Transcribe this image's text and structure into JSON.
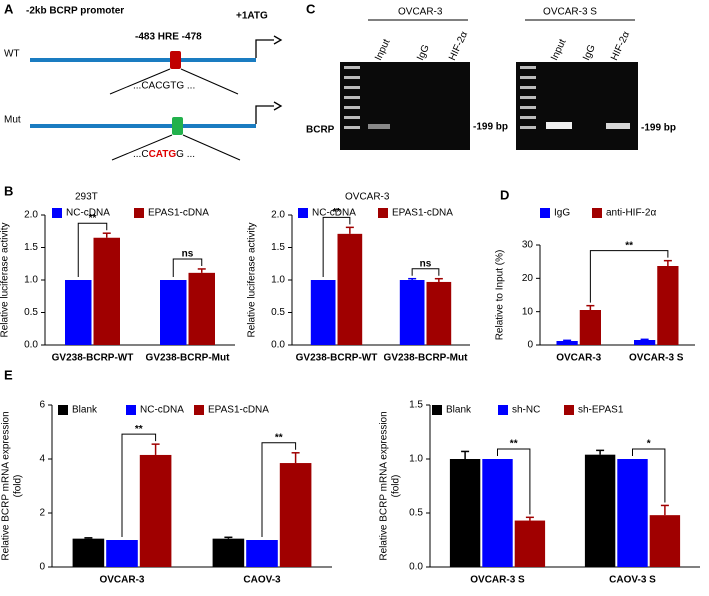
{
  "panel_labels": [
    "A",
    "B",
    "C",
    "D",
    "E"
  ],
  "panel_a": {
    "title": "-2kb BCRP promoter",
    "start": "+1ATG",
    "hre": "-483 HRE -478",
    "wt": "WT",
    "wt_seq": "...CACGTG ...",
    "mut": "Mut",
    "mut_seq": [
      "...C",
      "CATG",
      "G ..."
    ]
  },
  "panel_c": {
    "gels": [
      {
        "title": "OVCAR-3",
        "lanes": [
          "Input",
          "IgG",
          "HIF-2α"
        ],
        "size": "-199 bp"
      },
      {
        "title": "OVCAR-3 S",
        "lanes": [
          "Input",
          "IgG",
          "HIF-2α"
        ],
        "size": "-199 bp"
      }
    ],
    "row_label": "BCRP"
  },
  "chart_data": [
    {
      "type": "bar",
      "title": "293T",
      "categories": [
        "GV238-BCRP-WT",
        "GV238-BCRP-Mut"
      ],
      "ylabel": "Relative luciferase activity",
      "ylim": [
        0,
        2
      ],
      "yticks": [
        {
          "value": 0,
          "label": "0.0"
        },
        {
          "value": 0.5,
          "label": "0.5"
        },
        {
          "value": 1,
          "label": "1.0"
        },
        {
          "value": 1.5,
          "label": "1.5"
        },
        {
          "value": 2,
          "label": "2.0"
        }
      ],
      "series": [
        {
          "name": "NC-cDNA",
          "color": "#0000ff",
          "values": [
            1.0,
            1.0
          ],
          "errors": [
            null,
            null
          ]
        },
        {
          "name": "EPAS1-cDNA",
          "color": "#a00000",
          "values": [
            1.65,
            1.11
          ],
          "errors": [
            0.07,
            0.06
          ]
        }
      ],
      "annotations": [
        "**",
        "ns"
      ]
    },
    {
      "type": "bar",
      "title": "OVCAR-3",
      "categories": [
        "GV238-BCRP-WT",
        "GV238-BCRP-Mut"
      ],
      "ylabel": "Relative luciferase activity",
      "ylim": [
        0,
        2
      ],
      "yticks": [
        {
          "value": 0,
          "label": "0.0"
        },
        {
          "value": 0.5,
          "label": "0.5"
        },
        {
          "value": 1,
          "label": "1.0"
        },
        {
          "value": 1.5,
          "label": "1.5"
        },
        {
          "value": 2,
          "label": "2.0"
        }
      ],
      "series": [
        {
          "name": "NC-cDNA",
          "color": "#0000ff",
          "values": [
            1.0,
            1.0
          ],
          "errors": [
            null,
            0.02
          ]
        },
        {
          "name": "EPAS1-cDNA",
          "color": "#a00000",
          "values": [
            1.71,
            0.97
          ],
          "errors": [
            0.1,
            0.05
          ]
        }
      ],
      "annotations": [
        "**",
        "ns"
      ]
    },
    {
      "type": "bar",
      "categories": [
        "OVCAR-3",
        "OVCAR-3 S"
      ],
      "ylabel": "Relative to Input (%)",
      "ylim": [
        0,
        30
      ],
      "yticks": [
        0,
        10,
        20,
        30
      ],
      "series": [
        {
          "name": "IgG",
          "color": "#0000ff",
          "values": [
            1.2,
            1.5
          ],
          "errors": [
            0.2,
            0.2
          ]
        },
        {
          "name": "anti-HIF-2α",
          "color": "#a00000",
          "values": [
            10.5,
            23.7
          ],
          "errors": [
            1.3,
            1.6
          ]
        }
      ],
      "annotations": [
        "**"
      ]
    },
    {
      "type": "bar",
      "categories": [
        "OVCAR-3",
        "CAOV-3"
      ],
      "ylabel": [
        "Relative BCRP mRNA expression",
        "(fold)"
      ],
      "ylim": [
        0,
        6
      ],
      "yticks": [
        0,
        2,
        4,
        6
      ],
      "series": [
        {
          "name": "Blank",
          "color": "#000000",
          "values": [
            1.05,
            1.05
          ],
          "errors": [
            0.03,
            0.05
          ]
        },
        {
          "name": "NC-cDNA",
          "color": "#0000ff",
          "values": [
            1.0,
            1.0
          ],
          "errors": [
            null,
            null
          ]
        },
        {
          "name": "EPAS1-cDNA",
          "color": "#a00000",
          "values": [
            4.15,
            3.85
          ],
          "errors": [
            0.4,
            0.38
          ]
        }
      ],
      "annotations": [
        "**",
        "**"
      ]
    },
    {
      "type": "bar",
      "categories": [
        "OVCAR-3 S",
        "CAOV-3 S"
      ],
      "ylabel": [
        "Relative BCRP mRNA expression",
        "(fold)"
      ],
      "ylim": [
        0,
        1.5
      ],
      "yticks": [
        {
          "value": 0,
          "label": "0.0"
        },
        {
          "value": 0.5,
          "label": "0.5"
        },
        {
          "value": 1,
          "label": "1.0"
        },
        {
          "value": 1.5,
          "label": "1.5"
        }
      ],
      "series": [
        {
          "name": "Blank",
          "color": "#000000",
          "values": [
            1.0,
            1.04
          ],
          "errors": [
            0.07,
            0.04
          ]
        },
        {
          "name": "sh-NC",
          "color": "#0000ff",
          "values": [
            1.0,
            1.0
          ],
          "errors": [
            null,
            null
          ]
        },
        {
          "name": "sh-EPAS1",
          "color": "#a00000",
          "values": [
            0.43,
            0.48
          ],
          "errors": [
            0.03,
            0.09
          ]
        }
      ],
      "annotations": [
        "**",
        "*"
      ]
    }
  ]
}
